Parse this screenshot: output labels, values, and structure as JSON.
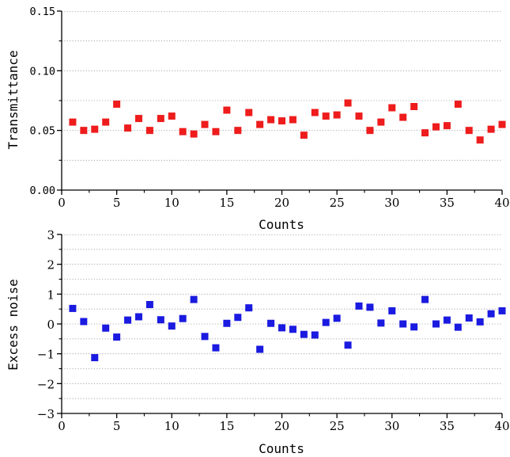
{
  "chart_data": [
    {
      "type": "scatter",
      "xlabel": "Counts",
      "ylabel": "Transmittance",
      "xlim": [
        0,
        40
      ],
      "ylim": [
        0,
        0.15
      ],
      "x_ticks": [
        "0",
        "5",
        "10",
        "15",
        "20",
        "25",
        "30",
        "35",
        "40"
      ],
      "y_ticks": [
        "0.00",
        "0.05",
        "0.10",
        "0.15"
      ],
      "grid": "horizontal dotted",
      "marker": "square",
      "series": [
        {
          "color": "#ee1c1c",
          "x": [
            1,
            2,
            3,
            4,
            5,
            6,
            7,
            8,
            9,
            10,
            11,
            12,
            13,
            14,
            15,
            16,
            17,
            18,
            19,
            20,
            21,
            22,
            23,
            24,
            25,
            26,
            27,
            28,
            29,
            30,
            31,
            32,
            33,
            34,
            35,
            36,
            37,
            38,
            39,
            40
          ],
          "values": [
            0.057,
            0.05,
            0.051,
            0.057,
            0.072,
            0.052,
            0.06,
            0.05,
            0.06,
            0.062,
            0.049,
            0.047,
            0.055,
            0.049,
            0.067,
            0.05,
            0.065,
            0.055,
            0.059,
            0.058,
            0.059,
            0.046,
            0.065,
            0.062,
            0.063,
            0.073,
            0.062,
            0.05,
            0.057,
            0.069,
            0.061,
            0.07,
            0.048,
            0.053,
            0.054,
            0.072,
            0.05,
            0.042,
            0.051,
            0.055
          ]
        }
      ]
    },
    {
      "type": "scatter",
      "xlabel": "Counts",
      "ylabel": "Excess noise",
      "xlim": [
        0,
        40
      ],
      "ylim": [
        -3,
        3
      ],
      "x_ticks": [
        "0",
        "5",
        "10",
        "15",
        "20",
        "25",
        "30",
        "35",
        "40"
      ],
      "y_ticks": [
        "−3",
        "−2",
        "−1",
        "0",
        "1",
        "2",
        "3"
      ],
      "grid": "horizontal dotted",
      "marker": "square",
      "series": [
        {
          "color": "#1a1ae0",
          "x": [
            1,
            2,
            3,
            4,
            5,
            6,
            7,
            8,
            9,
            10,
            11,
            12,
            13,
            14,
            15,
            16,
            17,
            18,
            19,
            20,
            21,
            22,
            23,
            24,
            25,
            26,
            27,
            28,
            29,
            30,
            31,
            32,
            33,
            34,
            35,
            36,
            37,
            38,
            39,
            40
          ],
          "values": [
            0.52,
            0.08,
            -1.13,
            -0.14,
            -0.44,
            0.13,
            0.24,
            0.65,
            0.14,
            -0.07,
            0.18,
            0.82,
            -0.42,
            -0.8,
            0.02,
            0.22,
            0.54,
            -0.85,
            0.02,
            -0.13,
            -0.18,
            -0.35,
            -0.37,
            0.05,
            0.19,
            -0.71,
            0.6,
            0.56,
            0.03,
            0.44,
            0.0,
            -0.1,
            0.82,
            0.0,
            0.13,
            -0.11,
            0.2,
            0.07,
            0.34,
            0.44
          ]
        }
      ]
    }
  ]
}
